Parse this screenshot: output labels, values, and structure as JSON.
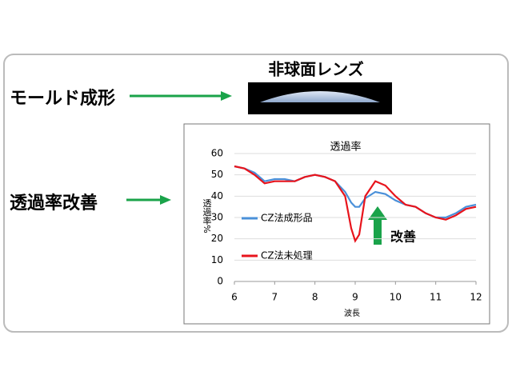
{
  "labels": {
    "molding": "モールド成形",
    "lens": "非球面レンズ",
    "improve": "透過率改善"
  },
  "chart_data": {
    "type": "line",
    "title": "透過率",
    "x_label": "波長",
    "y_label": "透過率%",
    "annotation": "改善",
    "x": [
      6,
      6.25,
      6.5,
      6.75,
      7,
      7.25,
      7.5,
      7.75,
      8,
      8.25,
      8.5,
      8.75,
      8.9,
      9,
      9.1,
      9.25,
      9.5,
      9.75,
      10,
      10.25,
      10.5,
      10.75,
      11,
      11.25,
      11.5,
      11.75,
      12
    ],
    "series": [
      {
        "name": "CZ法成形品",
        "color": "#4a90d9",
        "values": [
          54,
          53,
          51,
          47,
          48,
          48,
          47,
          49,
          50,
          49,
          47,
          42,
          37,
          35,
          35,
          39,
          42,
          41,
          38,
          36,
          35,
          32,
          30,
          30,
          32,
          35,
          36
        ]
      },
      {
        "name": "CZ法未処理",
        "color": "#e8141c",
        "values": [
          54,
          53,
          50,
          46,
          47,
          47,
          47,
          49,
          50,
          49,
          47,
          40,
          25,
          19,
          22,
          40,
          47,
          45,
          40,
          36,
          35,
          32,
          30,
          29,
          31,
          34,
          35
        ]
      }
    ],
    "xlim": [
      6,
      12
    ],
    "xticks": [
      6,
      7,
      8,
      9,
      10,
      11,
      12
    ],
    "ylim": [
      0,
      60
    ],
    "yticks": [
      0,
      10,
      20,
      30,
      40,
      50,
      60
    ],
    "grid": true
  }
}
